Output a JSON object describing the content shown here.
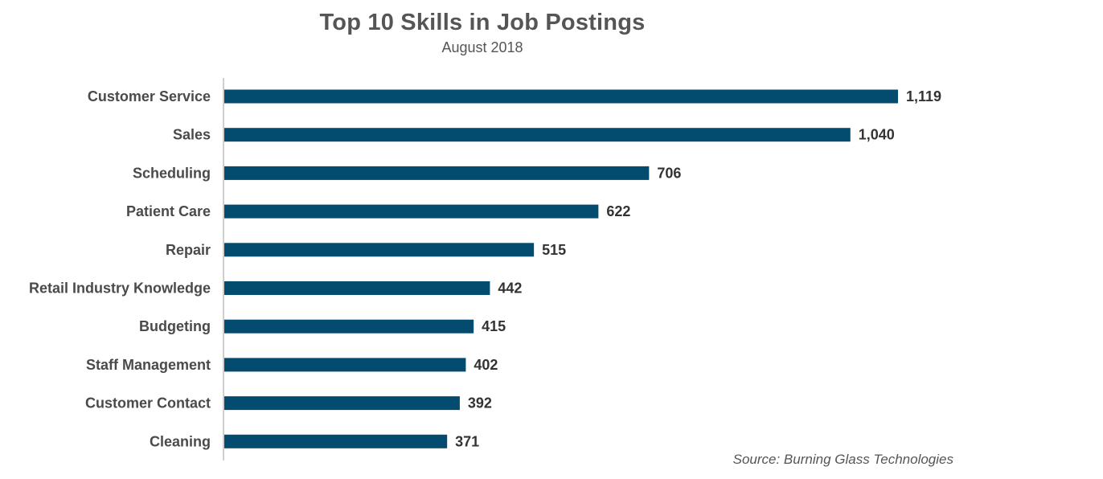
{
  "chart_data": {
    "type": "bar",
    "orientation": "horizontal",
    "title": "Top 10 Skills in Job Postings",
    "subtitle": "August 2018",
    "source": "Source: Burning Glass Technologies",
    "categories": [
      "Customer Service",
      "Sales",
      "Scheduling",
      "Patient Care",
      "Repair",
      "Retail Industry Knowledge",
      "Budgeting",
      "Staff Management",
      "Customer Contact",
      "Cleaning"
    ],
    "values": [
      1119,
      1040,
      706,
      622,
      515,
      442,
      415,
      402,
      392,
      371
    ],
    "value_labels": [
      "1,119",
      "1,040",
      "706",
      "622",
      "515",
      "442",
      "415",
      "402",
      "392",
      "371"
    ],
    "xlim": [
      0,
      1119
    ],
    "grid": false,
    "legend": "none",
    "bar_color": "#034b6f",
    "axis_color": "#bfbfbf"
  }
}
